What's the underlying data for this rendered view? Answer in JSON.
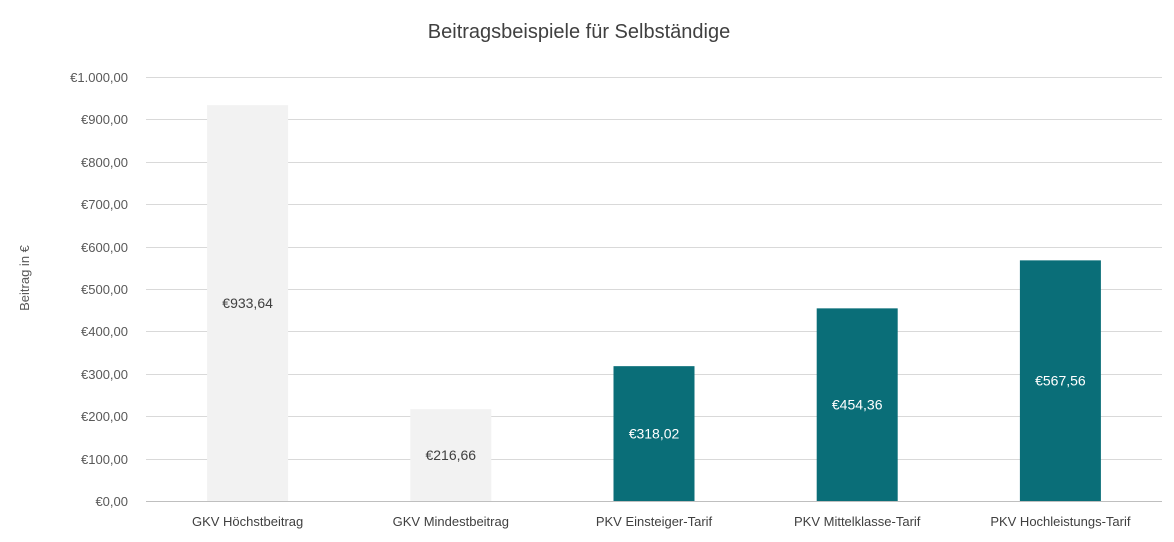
{
  "chart_data": {
    "type": "bar",
    "title": "Beitragsbeispiele für Selbständige",
    "xlabel": "",
    "ylabel": "Beitrag in €",
    "ylim": [
      0,
      1000
    ],
    "yticks": [
      0,
      100,
      200,
      300,
      400,
      500,
      600,
      700,
      800,
      900,
      1000
    ],
    "ytick_labels": [
      "€0,00",
      "€100,00",
      "€200,00",
      "€300,00",
      "€400,00",
      "€500,00",
      "€600,00",
      "€700,00",
      "€800,00",
      "€900,00",
      "€1.000,00"
    ],
    "grid": true,
    "categories": [
      "GKV Höchstbeitrag",
      "GKV Mindestbeitrag",
      "PKV Einsteiger-Tarif",
      "PKV Mittelklasse-Tarif",
      "PKV Hochleistungs-Tarif"
    ],
    "values": [
      933.64,
      216.66,
      318.02,
      454.36,
      567.56
    ],
    "data_labels": [
      "€933,64",
      "€216,66",
      "€318,02",
      "€454,36",
      "€567,56"
    ],
    "bar_colors": [
      "#f2f2f2",
      "#f2f2f2",
      "#0a6e78",
      "#0a6e78",
      "#0a6e78"
    ],
    "label_colors": [
      "#404040",
      "#404040",
      "#ffffff",
      "#ffffff",
      "#ffffff"
    ]
  }
}
